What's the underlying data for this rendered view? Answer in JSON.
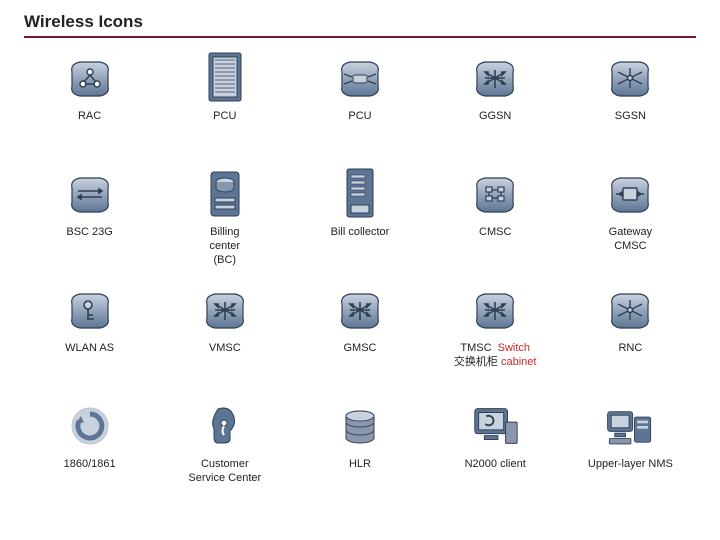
{
  "title": "Wireless Icons",
  "palette": {
    "fill": "#5d7594",
    "stroke": "#2f3e55",
    "light": "#c8d2df",
    "disk": "#8897ab",
    "shadow": "#b9c4d2"
  },
  "grid": {
    "cols": 5,
    "rows": 4
  },
  "cells": [
    {
      "label": "RAC",
      "icon": "ring3"
    },
    {
      "label": "PCU",
      "icon": "cabinet"
    },
    {
      "label": "PCU",
      "icon": "switch-core"
    },
    {
      "label": "GGSN",
      "icon": "switch-x"
    },
    {
      "label": "SGSN",
      "icon": "switch-star"
    },
    {
      "label": "BSC 23G",
      "icon": "switch-plain"
    },
    {
      "label": "Billing\ncenter\n(BC)",
      "icon": "disk-box"
    },
    {
      "label": "Bill collector",
      "icon": "server-slots"
    },
    {
      "label": "CMSC",
      "icon": "grid-switch"
    },
    {
      "label": "Gateway\nCMSC",
      "icon": "gateway"
    },
    {
      "label": "WLAN AS",
      "icon": "key"
    },
    {
      "label": "VMSC",
      "icon": "switch-x"
    },
    {
      "label": "GMSC",
      "icon": "switch-x"
    },
    {
      "label_html": "TMSC&nbsp;&nbsp;<span class='red'>Switch</span><br>交换机柜 <span class='red'>cabinet</span>",
      "icon": "switch-x"
    },
    {
      "label": "RNC",
      "icon": "switch-star"
    },
    {
      "label": "1860/1861",
      "icon": "recycle"
    },
    {
      "label": "Customer\nService Center",
      "icon": "head"
    },
    {
      "label": "HLR",
      "icon": "db"
    },
    {
      "label": "N2000 client",
      "icon": "monitor"
    },
    {
      "label": "Upper-layer NMS",
      "icon": "workstation"
    }
  ]
}
